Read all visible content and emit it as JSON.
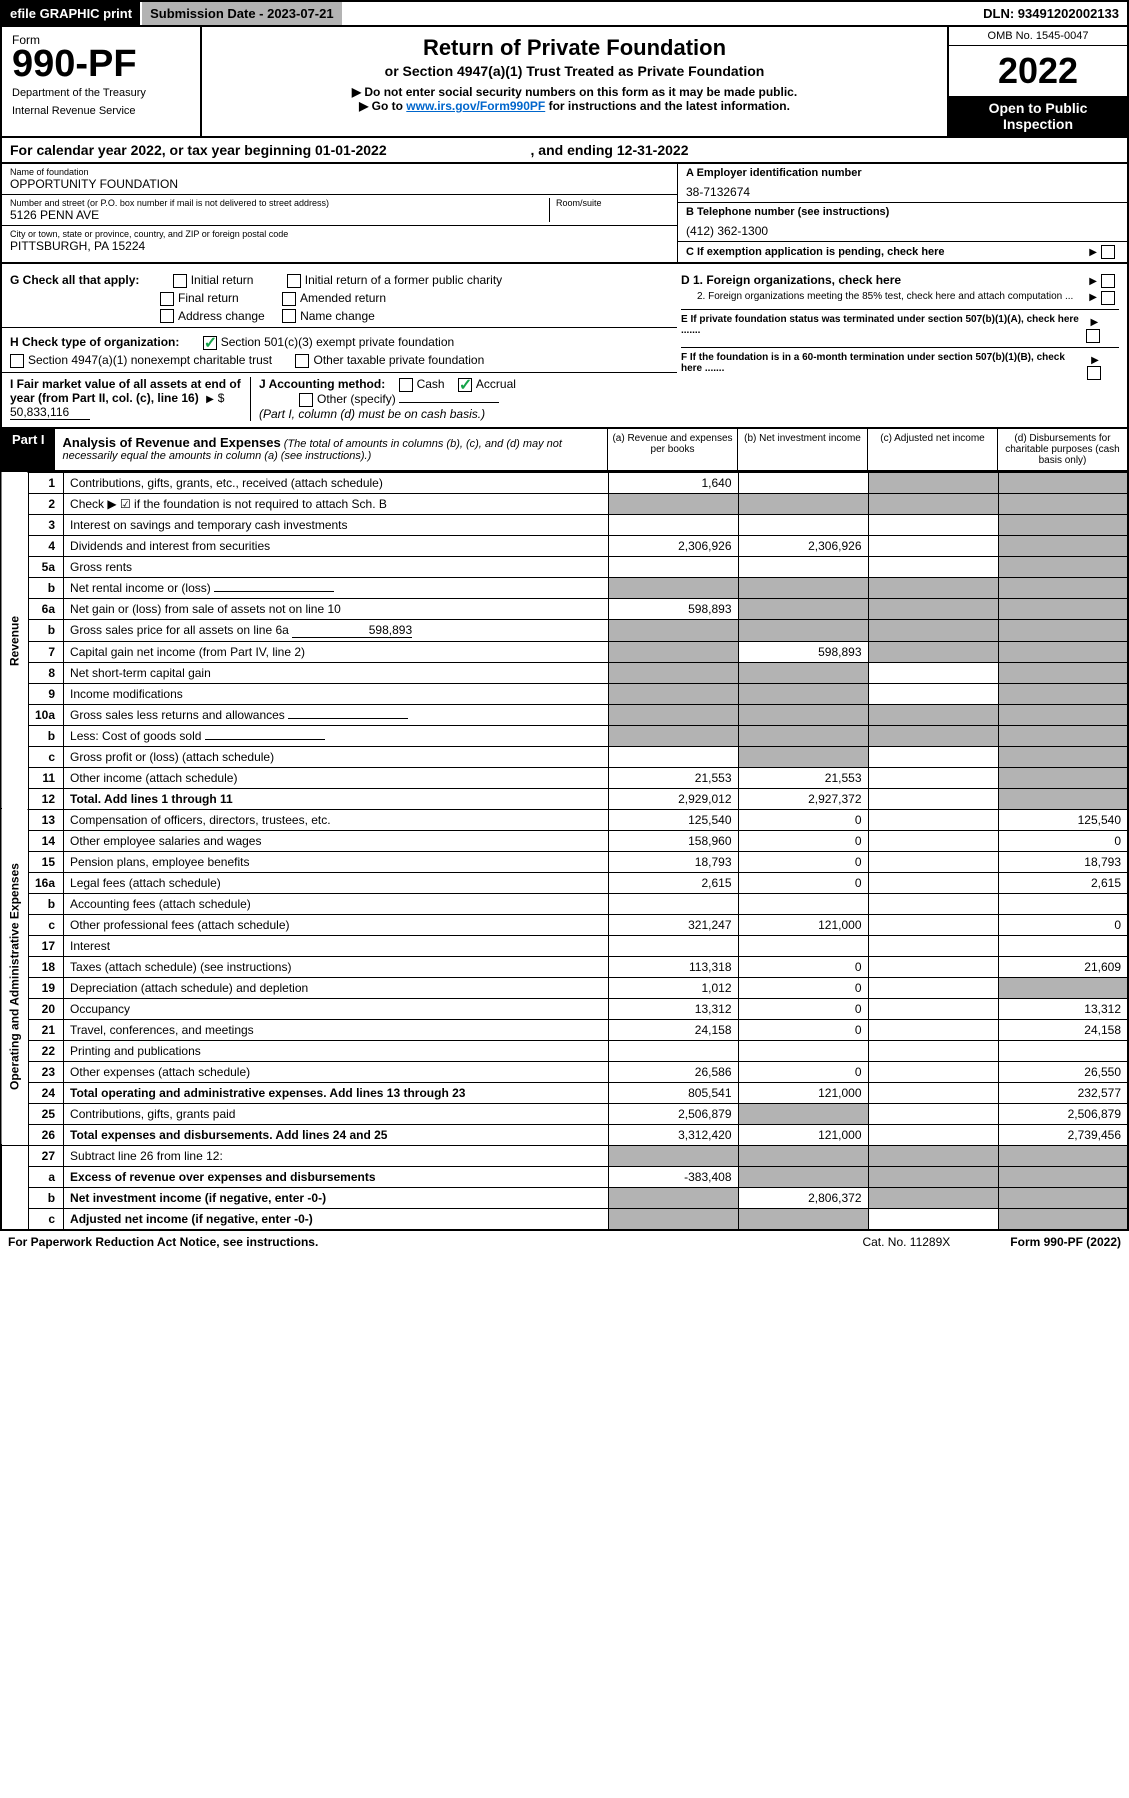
{
  "topbar": {
    "efile": "efile GRAPHIC print",
    "submission": "Submission Date - 2023-07-21",
    "dln": "DLN: 93491202002133"
  },
  "header": {
    "form_word": "Form",
    "form_num": "990-PF",
    "dept": "Department of the Treasury",
    "irs": "Internal Revenue Service",
    "title": "Return of Private Foundation",
    "sub1": "or Section 4947(a)(1) Trust Treated as Private Foundation",
    "sub2": "▶ Do not enter social security numbers on this form as it may be made public.",
    "sub3_pre": "▶ Go to ",
    "sub3_link": "www.irs.gov/Form990PF",
    "sub3_post": " for instructions and the latest information.",
    "omb": "OMB No. 1545-0047",
    "year": "2022",
    "open": "Open to Public Inspection"
  },
  "calyear": {
    "pre": "For calendar year 2022, or tax year beginning ",
    "begin": "01-01-2022",
    "mid": " , and ending ",
    "end": "12-31-2022"
  },
  "info": {
    "name_label": "Name of foundation",
    "name": "OPPORTUNITY FOUNDATION",
    "addr_label": "Number and street (or P.O. box number if mail is not delivered to street address)",
    "addr": "5126 PENN AVE",
    "room_label": "Room/suite",
    "city_label": "City or town, state or province, country, and ZIP or foreign postal code",
    "city": "PITTSBURGH, PA  15224",
    "a_label": "A Employer identification number",
    "a_val": "38-7132674",
    "b_label": "B Telephone number (see instructions)",
    "b_val": "(412) 362-1300",
    "c_label": "C If exemption application is pending, check here"
  },
  "checks": {
    "g_label": "G Check all that apply:",
    "g_initial": "Initial return",
    "g_initial_former": "Initial return of a former public charity",
    "g_final": "Final return",
    "g_amended": "Amended return",
    "g_address": "Address change",
    "g_name": "Name change",
    "h_label": "H Check type of organization:",
    "h_501c3": "Section 501(c)(3) exempt private foundation",
    "h_4947": "Section 4947(a)(1) nonexempt charitable trust",
    "h_other": "Other taxable private foundation",
    "i_label": "I Fair market value of all assets at end of year (from Part II, col. (c), line 16)",
    "i_val": "50,833,116",
    "j_label": "J Accounting method:",
    "j_cash": "Cash",
    "j_accrual": "Accrual",
    "j_other": "Other (specify)",
    "j_note": "(Part I, column (d) must be on cash basis.)",
    "d1": "D 1. Foreign organizations, check here",
    "d2": "2. Foreign organizations meeting the 85% test, check here and attach computation ...",
    "e": "E  If private foundation status was terminated under section 507(b)(1)(A), check here .......",
    "f": "F  If the foundation is in a 60-month termination under section 507(b)(1)(B), check here ......."
  },
  "part1": {
    "label": "Part I",
    "title": "Analysis of Revenue and Expenses",
    "note": "(The total of amounts in columns (b), (c), and (d) may not necessarily equal the amounts in column (a) (see instructions).)",
    "col_a": "(a)   Revenue and expenses per books",
    "col_b": "(b)   Net investment income",
    "col_c": "(c)   Adjusted net income",
    "col_d": "(d)   Disbursements for charitable purposes (cash basis only)"
  },
  "sections": {
    "revenue": "Revenue",
    "expenses": "Operating and Administrative Expenses"
  },
  "rows": [
    {
      "n": "1",
      "desc": "Contributions, gifts, grants, etc., received (attach schedule)",
      "a": "1,640",
      "b": "",
      "c": "s",
      "d": "s"
    },
    {
      "n": "2",
      "desc": "Check ▶ ☑ if the foundation is not required to attach Sch. B",
      "a": "s",
      "b": "s",
      "c": "s",
      "d": "s",
      "descbold": false
    },
    {
      "n": "3",
      "desc": "Interest on savings and temporary cash investments",
      "a": "",
      "b": "",
      "c": "",
      "d": "s"
    },
    {
      "n": "4",
      "desc": "Dividends and interest from securities",
      "a": "2,306,926",
      "b": "2,306,926",
      "c": "",
      "d": "s"
    },
    {
      "n": "5a",
      "desc": "Gross rents",
      "a": "",
      "b": "",
      "c": "",
      "d": "s"
    },
    {
      "n": "b",
      "desc": "Net rental income or (loss)",
      "a": "s",
      "b": "s",
      "c": "s",
      "d": "s",
      "inline": true
    },
    {
      "n": "6a",
      "desc": "Net gain or (loss) from sale of assets not on line 10",
      "a": "598,893",
      "b": "s",
      "c": "s",
      "d": "s"
    },
    {
      "n": "b",
      "desc": "Gross sales price for all assets on line 6a",
      "a": "s",
      "b": "s",
      "c": "s",
      "d": "s",
      "inline": true,
      "inlineval": "598,893"
    },
    {
      "n": "7",
      "desc": "Capital gain net income (from Part IV, line 2)",
      "a": "s",
      "b": "598,893",
      "c": "s",
      "d": "s"
    },
    {
      "n": "8",
      "desc": "Net short-term capital gain",
      "a": "s",
      "b": "s",
      "c": "",
      "d": "s"
    },
    {
      "n": "9",
      "desc": "Income modifications",
      "a": "s",
      "b": "s",
      "c": "",
      "d": "s"
    },
    {
      "n": "10a",
      "desc": "Gross sales less returns and allowances",
      "a": "s",
      "b": "s",
      "c": "s",
      "d": "s",
      "inline": true
    },
    {
      "n": "b",
      "desc": "Less: Cost of goods sold",
      "a": "s",
      "b": "s",
      "c": "s",
      "d": "s",
      "inline": true
    },
    {
      "n": "c",
      "desc": "Gross profit or (loss) (attach schedule)",
      "a": "",
      "b": "s",
      "c": "",
      "d": "s"
    },
    {
      "n": "11",
      "desc": "Other income (attach schedule)",
      "a": "21,553",
      "b": "21,553",
      "c": "",
      "d": "s"
    },
    {
      "n": "12",
      "desc": "Total. Add lines 1 through 11",
      "a": "2,929,012",
      "b": "2,927,372",
      "c": "",
      "d": "s",
      "bold": true
    }
  ],
  "exp_rows": [
    {
      "n": "13",
      "desc": "Compensation of officers, directors, trustees, etc.",
      "a": "125,540",
      "b": "0",
      "c": "",
      "d": "125,540"
    },
    {
      "n": "14",
      "desc": "Other employee salaries and wages",
      "a": "158,960",
      "b": "0",
      "c": "",
      "d": "0"
    },
    {
      "n": "15",
      "desc": "Pension plans, employee benefits",
      "a": "18,793",
      "b": "0",
      "c": "",
      "d": "18,793"
    },
    {
      "n": "16a",
      "desc": "Legal fees (attach schedule)",
      "a": "2,615",
      "b": "0",
      "c": "",
      "d": "2,615"
    },
    {
      "n": "b",
      "desc": "Accounting fees (attach schedule)",
      "a": "",
      "b": "",
      "c": "",
      "d": ""
    },
    {
      "n": "c",
      "desc": "Other professional fees (attach schedule)",
      "a": "321,247",
      "b": "121,000",
      "c": "",
      "d": "0"
    },
    {
      "n": "17",
      "desc": "Interest",
      "a": "",
      "b": "",
      "c": "",
      "d": ""
    },
    {
      "n": "18",
      "desc": "Taxes (attach schedule) (see instructions)",
      "a": "113,318",
      "b": "0",
      "c": "",
      "d": "21,609"
    },
    {
      "n": "19",
      "desc": "Depreciation (attach schedule) and depletion",
      "a": "1,012",
      "b": "0",
      "c": "",
      "d": "s"
    },
    {
      "n": "20",
      "desc": "Occupancy",
      "a": "13,312",
      "b": "0",
      "c": "",
      "d": "13,312"
    },
    {
      "n": "21",
      "desc": "Travel, conferences, and meetings",
      "a": "24,158",
      "b": "0",
      "c": "",
      "d": "24,158"
    },
    {
      "n": "22",
      "desc": "Printing and publications",
      "a": "",
      "b": "",
      "c": "",
      "d": ""
    },
    {
      "n": "23",
      "desc": "Other expenses (attach schedule)",
      "a": "26,586",
      "b": "0",
      "c": "",
      "d": "26,550"
    },
    {
      "n": "24",
      "desc": "Total operating and administrative expenses. Add lines 13 through 23",
      "a": "805,541",
      "b": "121,000",
      "c": "",
      "d": "232,577",
      "bold": true
    },
    {
      "n": "25",
      "desc": "Contributions, gifts, grants paid",
      "a": "2,506,879",
      "b": "s",
      "c": "",
      "d": "2,506,879"
    },
    {
      "n": "26",
      "desc": "Total expenses and disbursements. Add lines 24 and 25",
      "a": "3,312,420",
      "b": "121,000",
      "c": "",
      "d": "2,739,456",
      "bold": true
    }
  ],
  "bottom_rows": [
    {
      "n": "27",
      "desc": "Subtract line 26 from line 12:",
      "a": "s",
      "b": "s",
      "c": "s",
      "d": "s"
    },
    {
      "n": "a",
      "desc": "Excess of revenue over expenses and disbursements",
      "a": "-383,408",
      "b": "s",
      "c": "s",
      "d": "s",
      "bold": true
    },
    {
      "n": "b",
      "desc": "Net investment income (if negative, enter -0-)",
      "a": "s",
      "b": "2,806,372",
      "c": "s",
      "d": "s",
      "bold": true
    },
    {
      "n": "c",
      "desc": "Adjusted net income (if negative, enter -0-)",
      "a": "s",
      "b": "s",
      "c": "",
      "d": "s",
      "bold": true
    }
  ],
  "footer": {
    "left": "For Paperwork Reduction Act Notice, see instructions.",
    "mid": "Cat. No. 11289X",
    "right": "Form 990-PF (2022)"
  },
  "colors": {
    "shade": "#b3b3b3",
    "link": "#0066cc",
    "check": "#16a34a"
  }
}
